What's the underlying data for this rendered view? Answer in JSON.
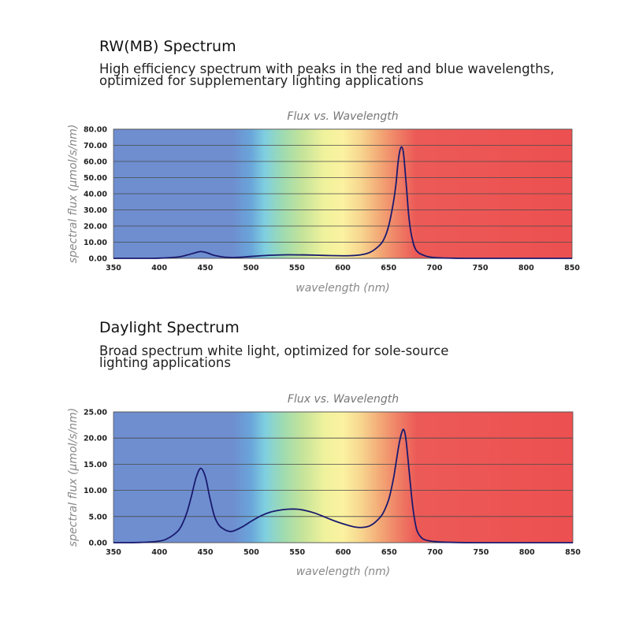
{
  "sections": [
    {
      "title": "RW(MB) Spectrum",
      "description_lines": [
        "High efficiency spectrum with peaks in the red and blue wavelengths,",
        "optimized for supplementary lighting applications"
      ]
    },
    {
      "title": "Daylight Spectrum",
      "description_lines": [
        "Broad spectrum white light, optimized for sole-source",
        "lighting applications"
      ]
    }
  ],
  "chart_data": [
    {
      "type": "line",
      "title": "Flux vs. Wavelength",
      "xlabel": "wavelength (nm)",
      "ylabel": "spectral flux (μmol/s/nm)",
      "xlim": [
        350,
        850
      ],
      "ylim": [
        0,
        80
      ],
      "x_ticks": [
        "350",
        "400",
        "450",
        "500",
        "550",
        "600",
        "650",
        "700",
        "750",
        "800",
        "850"
      ],
      "y_ticks": [
        "0.00",
        "10.00",
        "20.00",
        "30.00",
        "40.00",
        "50.00",
        "60.00",
        "70.00",
        "80.00"
      ],
      "grid": true,
      "background": "visible-spectrum gradient",
      "line_color": "#1a1a6e",
      "series": [
        {
          "x": [
            350,
            380,
            400,
            420,
            430,
            440,
            445,
            450,
            455,
            460,
            470,
            480,
            490,
            500,
            520,
            540,
            560,
            580,
            600,
            610,
            620,
            630,
            640,
            645,
            650,
            655,
            658,
            660,
            662,
            664,
            666,
            668,
            670,
            672,
            675,
            680,
            690,
            700,
            720,
            750,
            800,
            850
          ],
          "values": [
            0,
            0,
            0.1,
            0.8,
            2,
            3.6,
            4.2,
            3.8,
            2.8,
            1.8,
            0.8,
            0.5,
            0.7,
            1.2,
            1.9,
            2.2,
            2.1,
            1.8,
            1.6,
            1.7,
            2.2,
            3.8,
            8,
            12,
            20,
            34,
            46,
            58,
            66,
            69,
            66,
            54,
            40,
            26,
            14,
            5,
            1.5,
            0.5,
            0.1,
            0,
            0,
            0
          ]
        }
      ]
    },
    {
      "type": "line",
      "title": "Flux vs. Wavelength",
      "xlabel": "wavelength (nm)",
      "ylabel": "spectral flux (μmol/s/nm)",
      "xlim": [
        350,
        850
      ],
      "ylim": [
        0,
        25
      ],
      "x_ticks": [
        "350",
        "400",
        "450",
        "500",
        "550",
        "600",
        "650",
        "700",
        "750",
        "800",
        "850"
      ],
      "y_ticks": [
        "0.00",
        "5.00",
        "10.00",
        "15.00",
        "20.00",
        "25.00"
      ],
      "grid": true,
      "background": "visible-spectrum gradient",
      "line_color": "#1a1a6e",
      "series": [
        {
          "x": [
            350,
            380,
            400,
            410,
            420,
            425,
            430,
            435,
            440,
            445,
            450,
            455,
            460,
            465,
            470,
            475,
            480,
            490,
            500,
            510,
            520,
            530,
            540,
            550,
            560,
            570,
            580,
            590,
            600,
            610,
            620,
            630,
            640,
            645,
            650,
            655,
            658,
            661,
            664,
            666,
            668,
            670,
            673,
            676,
            680,
            685,
            690,
            700,
            720,
            750,
            800,
            850
          ],
          "values": [
            0,
            0.05,
            0.3,
            0.9,
            2.2,
            3.6,
            5.8,
            9,
            12.5,
            14.2,
            12.6,
            8.5,
            5,
            3.3,
            2.6,
            2.2,
            2.2,
            3,
            4.1,
            5.1,
            5.8,
            6.2,
            6.4,
            6.4,
            6.1,
            5.6,
            4.9,
            4.2,
            3.6,
            3.1,
            2.9,
            3.3,
            4.8,
            6.2,
            8.5,
            12.5,
            15.8,
            19,
            21.2,
            21.6,
            20.2,
            17,
            11.5,
            6.5,
            2.5,
            1,
            0.5,
            0.2,
            0.05,
            0,
            0,
            0
          ]
        }
      ]
    }
  ]
}
